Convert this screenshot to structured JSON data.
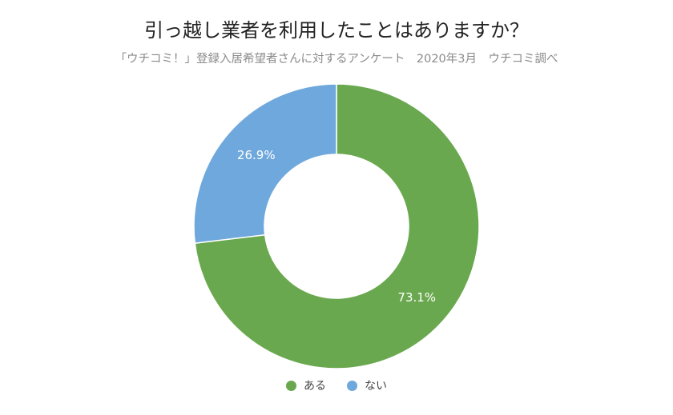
{
  "chart_data": {
    "type": "pie",
    "title": "引っ越し業者を利用したことはありますか？",
    "subtitle": "「ウチコミ！」登録入居希望者さんに対するアンケート　2020年3月　ウチコミ調べ",
    "categories": [
      "ある",
      "ない"
    ],
    "values": [
      73.1,
      26.9
    ],
    "value_labels": [
      "73.1%",
      "26.9%"
    ],
    "colors": [
      "#6aa84f",
      "#6fa8dc"
    ],
    "donut": true,
    "legend_placement": "bottom"
  }
}
